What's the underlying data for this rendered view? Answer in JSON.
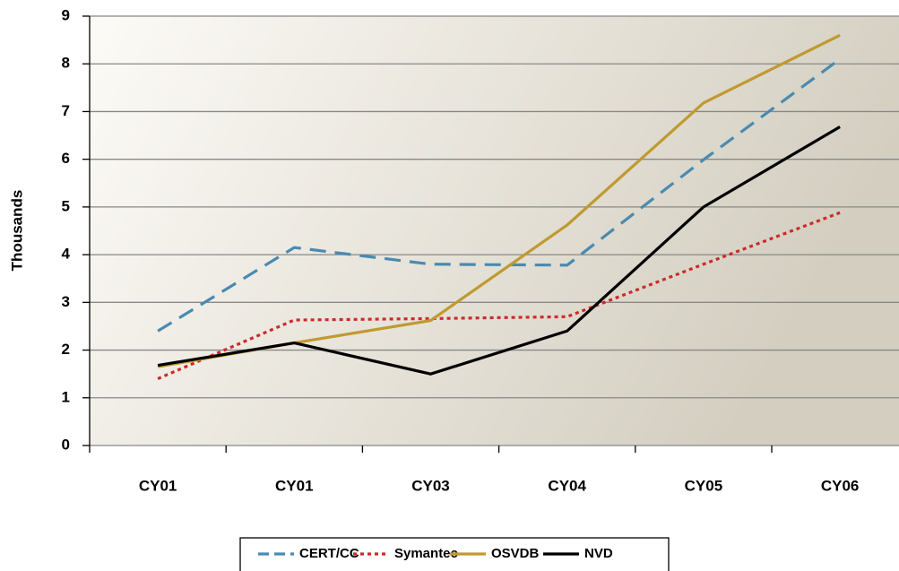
{
  "chart_data": {
    "type": "line",
    "ylabel": "Thousands",
    "categories": [
      "CY01",
      "CY01",
      "CY03",
      "CY04",
      "CY05",
      "CY06"
    ],
    "series": [
      {
        "name": "CERT/CC",
        "color": "#4a8ab0",
        "style": "dashed",
        "values": [
          2.4,
          4.15,
          3.8,
          3.78,
          5.99,
          8.1
        ]
      },
      {
        "name": "Symantec",
        "color": "#cc2a2a",
        "style": "dotted",
        "values": [
          1.4,
          2.63,
          2.66,
          2.7,
          3.8,
          4.88
        ]
      },
      {
        "name": "OSVDB",
        "color": "#c09a30",
        "style": "solid",
        "values": [
          1.65,
          2.15,
          2.62,
          4.62,
          7.18,
          8.6
        ]
      },
      {
        "name": "NVD",
        "color": "#000000",
        "style": "solid",
        "values": [
          1.68,
          2.15,
          1.5,
          2.4,
          5.0,
          6.68
        ]
      }
    ],
    "ylim": [
      0,
      9
    ],
    "yticks": [
      0,
      1,
      2,
      3,
      4,
      5,
      6,
      7,
      8,
      9
    ],
    "grid": true,
    "legend": "bottom"
  }
}
